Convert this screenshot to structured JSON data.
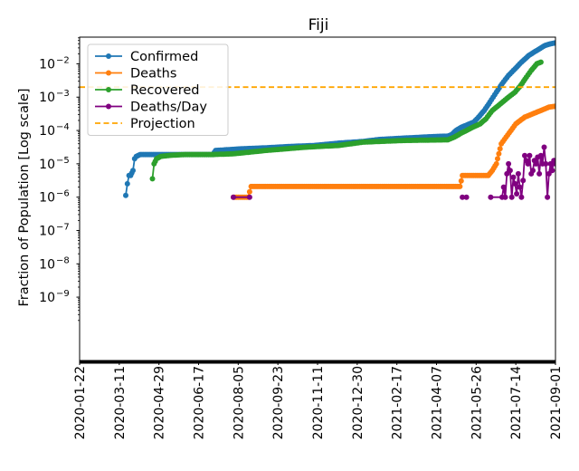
{
  "chart_data": {
    "type": "line",
    "title": "Fiji",
    "xlabel": "",
    "ylabel": "Fraction of Population [Log scale]",
    "yscale": "log",
    "ylim_log10": [
      -10.9,
      -1.2
    ],
    "y_ticks": [
      {
        "exp": -9,
        "base": "10",
        "sup": "−9"
      },
      {
        "exp": -8,
        "base": "10",
        "sup": "−8"
      },
      {
        "exp": -7,
        "base": "10",
        "sup": "−7"
      },
      {
        "exp": -6,
        "base": "10",
        "sup": "−6"
      },
      {
        "exp": -5,
        "base": "10",
        "sup": "−5"
      },
      {
        "exp": -4,
        "base": "10",
        "sup": "−4"
      },
      {
        "exp": -3,
        "base": "10",
        "sup": "−3"
      },
      {
        "exp": -2,
        "base": "10",
        "sup": "−2"
      }
    ],
    "x_range_days": [
      0,
      588
    ],
    "x_ticks": [
      {
        "day": 0,
        "label": "2020-01-22"
      },
      {
        "day": 49,
        "label": "2020-03-11"
      },
      {
        "day": 98,
        "label": "2020-04-29"
      },
      {
        "day": 147,
        "label": "2020-06-17"
      },
      {
        "day": 196,
        "label": "2020-08-05"
      },
      {
        "day": 245,
        "label": "2020-09-23"
      },
      {
        "day": 294,
        "label": "2020-11-11"
      },
      {
        "day": 343,
        "label": "2020-12-30"
      },
      {
        "day": 392,
        "label": "2021-02-17"
      },
      {
        "day": 441,
        "label": "2021-04-07"
      },
      {
        "day": 490,
        "label": "2021-05-26"
      },
      {
        "day": 539,
        "label": "2021-07-14"
      },
      {
        "day": 588,
        "label": "2021-09-01"
      }
    ],
    "legend_position": "top-left",
    "series": [
      {
        "name": "Confirmed",
        "color": "#1f77b4",
        "style": "line-marker",
        "points": [
          [
            57,
            -5.95
          ],
          [
            59,
            -5.6
          ],
          [
            61,
            -5.35
          ],
          [
            63,
            -5.35
          ],
          [
            66,
            -5.2
          ],
          [
            68,
            -4.85
          ],
          [
            70,
            -4.78
          ],
          [
            75,
            -4.72
          ],
          [
            85,
            -4.72
          ],
          [
            120,
            -4.72
          ],
          [
            165,
            -4.72
          ],
          [
            168,
            -4.6
          ],
          [
            200,
            -4.55
          ],
          [
            230,
            -4.52
          ],
          [
            260,
            -4.48
          ],
          [
            290,
            -4.45
          ],
          [
            320,
            -4.38
          ],
          [
            350,
            -4.33
          ],
          [
            370,
            -4.27
          ],
          [
            400,
            -4.23
          ],
          [
            440,
            -4.18
          ],
          [
            455,
            -4.17
          ],
          [
            460,
            -4.12
          ],
          [
            465,
            -4.0
          ],
          [
            472,
            -3.9
          ],
          [
            480,
            -3.82
          ],
          [
            487,
            -3.75
          ],
          [
            493,
            -3.6
          ],
          [
            500,
            -3.4
          ],
          [
            507,
            -3.15
          ],
          [
            515,
            -2.85
          ],
          [
            522,
            -2.6
          ],
          [
            530,
            -2.35
          ],
          [
            538,
            -2.15
          ],
          [
            546,
            -1.95
          ],
          [
            555,
            -1.75
          ],
          [
            565,
            -1.6
          ],
          [
            575,
            -1.45
          ],
          [
            582,
            -1.4
          ],
          [
            588,
            -1.37
          ]
        ]
      },
      {
        "name": "Deaths",
        "color": "#ff7f0e",
        "style": "line-marker",
        "points": [
          [
            190,
            -6.0
          ],
          [
            208,
            -6.0
          ],
          [
            212,
            -5.68
          ],
          [
            260,
            -5.68
          ],
          [
            350,
            -5.68
          ],
          [
            455,
            -5.68
          ],
          [
            470,
            -5.68
          ],
          [
            473,
            -5.35
          ],
          [
            505,
            -5.35
          ],
          [
            510,
            -5.2
          ],
          [
            515,
            -5.0
          ],
          [
            518,
            -4.7
          ],
          [
            521,
            -4.4
          ],
          [
            527,
            -4.2
          ],
          [
            533,
            -4.0
          ],
          [
            539,
            -3.8
          ],
          [
            550,
            -3.6
          ],
          [
            560,
            -3.5
          ],
          [
            570,
            -3.4
          ],
          [
            580,
            -3.3
          ],
          [
            588,
            -3.27
          ]
        ]
      },
      {
        "name": "Recovered",
        "color": "#2ca02c",
        "style": "line-marker",
        "points": [
          [
            90,
            -5.45
          ],
          [
            92,
            -5.0
          ],
          [
            95,
            -4.85
          ],
          [
            100,
            -4.78
          ],
          [
            110,
            -4.75
          ],
          [
            130,
            -4.72
          ],
          [
            165,
            -4.72
          ],
          [
            190,
            -4.7
          ],
          [
            230,
            -4.6
          ],
          [
            280,
            -4.5
          ],
          [
            320,
            -4.45
          ],
          [
            350,
            -4.35
          ],
          [
            400,
            -4.3
          ],
          [
            455,
            -4.28
          ],
          [
            463,
            -4.2
          ],
          [
            470,
            -4.1
          ],
          [
            478,
            -4.0
          ],
          [
            486,
            -3.9
          ],
          [
            495,
            -3.8
          ],
          [
            502,
            -3.65
          ],
          [
            510,
            -3.4
          ],
          [
            520,
            -3.2
          ],
          [
            530,
            -3.0
          ],
          [
            538,
            -2.85
          ],
          [
            545,
            -2.65
          ],
          [
            552,
            -2.4
          ],
          [
            558,
            -2.2
          ],
          [
            565,
            -2.0
          ],
          [
            570,
            -1.95
          ]
        ]
      },
      {
        "name": "Deaths/Day",
        "color": "#800080",
        "style": "marker-segments",
        "segments": [
          [
            [
              190,
              -6.0
            ],
            [
              210,
              -6.0
            ]
          ],
          [
            [
              473,
              -6.0
            ],
            [
              478,
              -6.0
            ]
          ],
          [
            [
              508,
              -6.0
            ],
            [
              522,
              -6.0
            ],
            [
              524,
              -5.7
            ],
            [
              526,
              -6.0
            ],
            [
              528,
              -5.3
            ],
            [
              530,
              -5.0
            ],
            [
              532,
              -5.2
            ],
            [
              534,
              -6.0
            ],
            [
              536,
              -5.4
            ],
            [
              538,
              -5.6
            ],
            [
              540,
              -5.9
            ],
            [
              542,
              -5.3
            ],
            [
              544,
              -5.7
            ],
            [
              546,
              -6.0
            ],
            [
              548,
              -5.5
            ],
            [
              550,
              -4.75
            ],
            [
              552,
              -4.9
            ],
            [
              554,
              -5.0
            ],
            [
              556,
              -4.75
            ],
            [
              558,
              -5.3
            ],
            [
              560,
              -5.2
            ],
            [
              562,
              -4.9
            ],
            [
              564,
              -5.0
            ],
            [
              566,
              -4.8
            ],
            [
              568,
              -5.3
            ],
            [
              570,
              -4.75
            ],
            [
              572,
              -5.0
            ],
            [
              574,
              -4.5
            ],
            [
              576,
              -5.0
            ],
            [
              578,
              -6.0
            ],
            [
              580,
              -5.3
            ],
            [
              582,
              -5.0
            ],
            [
              584,
              -5.2
            ],
            [
              586,
              -4.9
            ],
            [
              588,
              -5.0
            ]
          ]
        ]
      },
      {
        "name": "Projection",
        "color": "#ffa500",
        "style": "dashed-hline",
        "y_log10": -2.7
      }
    ]
  }
}
